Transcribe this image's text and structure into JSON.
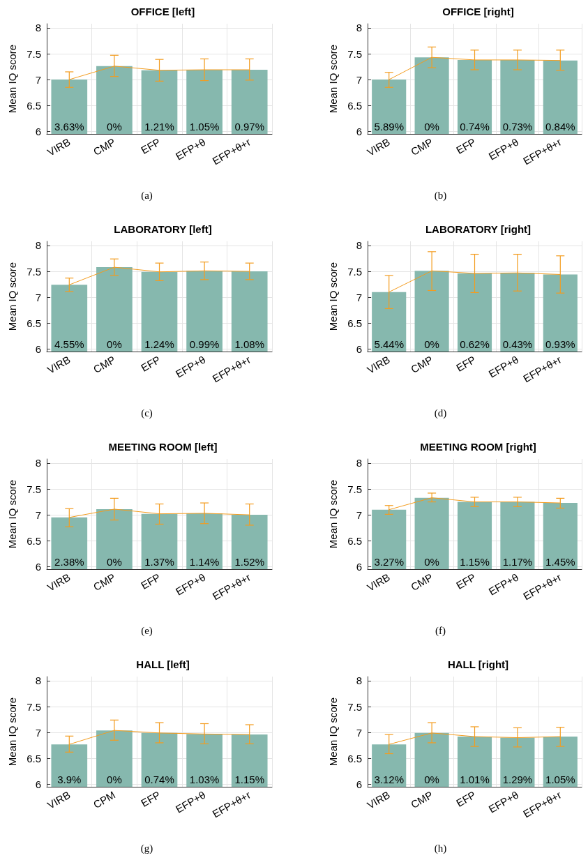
{
  "chart_data": [
    {
      "type": "bar",
      "title": "OFFICE [left]",
      "ylabel": "Mean IQ score",
      "categories": [
        "VIRB",
        "CMP",
        "EFP",
        "EFP+θ",
        "EFP+θ+r"
      ],
      "ylim": [
        5.95,
        8.08
      ],
      "yticks": [
        6,
        6.5,
        7,
        7.5,
        8
      ],
      "grid": true,
      "marker": "none",
      "annotations": [
        "(a)",
        "3.63%",
        "0%",
        "1.21%",
        "1.05%",
        "0.97%"
      ],
      "series": [
        {
          "color": "#86b8ae",
          "values": [
            7.0,
            7.26,
            7.18,
            7.19,
            7.19
          ]
        },
        {
          "type": "line",
          "color": "#f39c1f",
          "values": [
            7.0,
            7.26,
            7.18,
            7.19,
            7.19
          ],
          "errors": [
            [
              6.85,
              7.15
            ],
            [
              7.06,
              7.47
            ],
            [
              6.97,
              7.39
            ],
            [
              6.98,
              7.4
            ],
            [
              6.99,
              7.4
            ]
          ]
        }
      ]
    },
    {
      "type": "bar",
      "title": "OFFICE [right]",
      "ylabel": "Mean IQ score",
      "categories": [
        "VIRB",
        "CMP",
        "EFP",
        "EFP+θ",
        "EFP+θ+r"
      ],
      "ylim": [
        5.95,
        8.08
      ],
      "yticks": [
        6,
        6.5,
        7,
        7.5,
        8
      ],
      "grid": true,
      "marker": "none",
      "annotations": [
        "(b)",
        "5.89%",
        "0%",
        "0.74%",
        "0.73%",
        "0.84%"
      ],
      "series": [
        {
          "color": "#86b8ae",
          "values": [
            7.0,
            7.43,
            7.38,
            7.38,
            7.37
          ]
        },
        {
          "type": "line",
          "color": "#f39c1f",
          "values": [
            7.0,
            7.43,
            7.38,
            7.38,
            7.37
          ],
          "errors": [
            [
              6.85,
              7.14
            ],
            [
              7.23,
              7.63
            ],
            [
              7.19,
              7.57
            ],
            [
              7.19,
              7.57
            ],
            [
              7.18,
              7.57
            ]
          ]
        }
      ]
    },
    {
      "type": "bar",
      "title": "LABORATORY [left]",
      "ylabel": "Mean IQ score",
      "categories": [
        "VIRB",
        "CMP",
        "EFP",
        "EFP+θ",
        "EFP+θ+r"
      ],
      "ylim": [
        5.95,
        8.08
      ],
      "yticks": [
        6,
        6.5,
        7,
        7.5,
        8
      ],
      "grid": true,
      "marker": "none",
      "annotations": [
        "(c)",
        "4.55%",
        "0%",
        "1.24%",
        "0.99%",
        "1.08%"
      ],
      "series": [
        {
          "color": "#86b8ae",
          "values": [
            7.24,
            7.58,
            7.49,
            7.51,
            7.5
          ]
        },
        {
          "type": "line",
          "color": "#f39c1f",
          "values": [
            7.24,
            7.58,
            7.49,
            7.51,
            7.5
          ],
          "errors": [
            [
              7.11,
              7.37
            ],
            [
              7.42,
              7.74
            ],
            [
              7.32,
              7.66
            ],
            [
              7.34,
              7.68
            ],
            [
              7.34,
              7.66
            ]
          ]
        }
      ]
    },
    {
      "type": "bar",
      "title": "LABORATORY [right]",
      "ylabel": "Mean IQ score",
      "categories": [
        "VIRB",
        "CMP",
        "EFP",
        "EFP+θ",
        "EFP+θ+r"
      ],
      "ylim": [
        5.95,
        8.08
      ],
      "yticks": [
        6,
        6.5,
        7,
        7.5,
        8
      ],
      "grid": true,
      "marker": "none",
      "annotations": [
        "(d)",
        "5.44%",
        "0%",
        "0.62%",
        "0.43%",
        "0.93%"
      ],
      "series": [
        {
          "color": "#86b8ae",
          "values": [
            7.1,
            7.51,
            7.46,
            7.47,
            7.44
          ]
        },
        {
          "type": "line",
          "color": "#f39c1f",
          "values": [
            7.1,
            7.51,
            7.46,
            7.47,
            7.44
          ],
          "errors": [
            [
              6.78,
              7.42
            ],
            [
              7.13,
              7.88
            ],
            [
              7.09,
              7.83
            ],
            [
              7.12,
              7.83
            ],
            [
              7.08,
              7.8
            ]
          ]
        }
      ]
    },
    {
      "type": "bar",
      "title": "MEETING ROOM [left]",
      "ylabel": "Mean IQ score",
      "categories": [
        "VIRB",
        "CMP",
        "EFP",
        "EFP+θ",
        "EFP+θ+r"
      ],
      "ylim": [
        5.95,
        8.08
      ],
      "yticks": [
        6,
        6.5,
        7,
        7.5,
        8
      ],
      "grid": true,
      "marker": "none",
      "annotations": [
        "(e)",
        "2.38%",
        "0%",
        "1.37%",
        "1.14%",
        "1.52%"
      ],
      "series": [
        {
          "color": "#86b8ae",
          "values": [
            6.95,
            7.11,
            7.02,
            7.03,
            7.0
          ]
        },
        {
          "type": "line",
          "color": "#f39c1f",
          "values": [
            6.95,
            7.11,
            7.02,
            7.03,
            7.0
          ],
          "errors": [
            [
              6.77,
              7.12
            ],
            [
              6.9,
              7.32
            ],
            [
              6.82,
              7.21
            ],
            [
              6.83,
              7.23
            ],
            [
              6.8,
              7.21
            ]
          ]
        }
      ]
    },
    {
      "type": "bar",
      "title": "MEETING ROOM [right]",
      "ylabel": "Mean IQ score",
      "categories": [
        "VIRB",
        "CMP",
        "EFP",
        "EFP+θ",
        "EFP+θ+r"
      ],
      "ylim": [
        5.95,
        8.08
      ],
      "yticks": [
        6,
        6.5,
        7,
        7.5,
        8
      ],
      "grid": true,
      "marker": "none",
      "annotations": [
        "(f)",
        "3.27%",
        "0%",
        "1.15%",
        "1.17%",
        "1.45%"
      ],
      "series": [
        {
          "color": "#86b8ae",
          "values": [
            7.1,
            7.33,
            7.25,
            7.25,
            7.23
          ]
        },
        {
          "type": "line",
          "color": "#f39c1f",
          "values": [
            7.1,
            7.33,
            7.25,
            7.25,
            7.23
          ],
          "errors": [
            [
              7.01,
              7.18
            ],
            [
              7.25,
              7.42
            ],
            [
              7.16,
              7.34
            ],
            [
              7.16,
              7.34
            ],
            [
              7.13,
              7.32
            ]
          ]
        }
      ]
    },
    {
      "type": "bar",
      "title": "HALL [left]",
      "ylabel": "Mean IQ score",
      "categories": [
        "VIRB",
        "CPM",
        "EFP",
        "EFP+θ",
        "EFP+θ+r"
      ],
      "ylim": [
        5.95,
        8.08
      ],
      "yticks": [
        6,
        6.5,
        7,
        7.5,
        8
      ],
      "grid": true,
      "marker": "none",
      "annotations": [
        "(g)",
        "3.9%",
        "0%",
        "0.74%",
        "1.03%",
        "1.15%"
      ],
      "series": [
        {
          "color": "#86b8ae",
          "values": [
            6.77,
            7.04,
            6.99,
            6.97,
            6.96
          ]
        },
        {
          "type": "line",
          "color": "#f39c1f",
          "values": [
            6.77,
            7.04,
            6.99,
            6.97,
            6.96
          ],
          "errors": [
            [
              6.62,
              6.93
            ],
            [
              6.85,
              7.24
            ],
            [
              6.8,
              7.19
            ],
            [
              6.78,
              7.17
            ],
            [
              6.78,
              7.15
            ]
          ]
        }
      ]
    },
    {
      "type": "bar",
      "title": "HALL [right]",
      "ylabel": "Mean IQ score",
      "categories": [
        "VIRB",
        "CMP",
        "EFP",
        "EFP+θ",
        "EFP+θ+r"
      ],
      "ylim": [
        5.95,
        8.08
      ],
      "yticks": [
        6,
        6.5,
        7,
        7.5,
        8
      ],
      "grid": true,
      "marker": "none",
      "annotations": [
        "(h)",
        "3.12%",
        "0%",
        "1.01%",
        "1.29%",
        "1.05%"
      ],
      "series": [
        {
          "color": "#86b8ae",
          "values": [
            6.77,
            6.99,
            6.92,
            6.9,
            6.92
          ]
        },
        {
          "type": "line",
          "color": "#f39c1f",
          "values": [
            6.77,
            6.99,
            6.92,
            6.9,
            6.92
          ],
          "errors": [
            [
              6.59,
              6.96
            ],
            [
              6.8,
              7.19
            ],
            [
              6.73,
              7.11
            ],
            [
              6.72,
              7.09
            ],
            [
              6.73,
              7.1
            ]
          ]
        }
      ]
    }
  ]
}
